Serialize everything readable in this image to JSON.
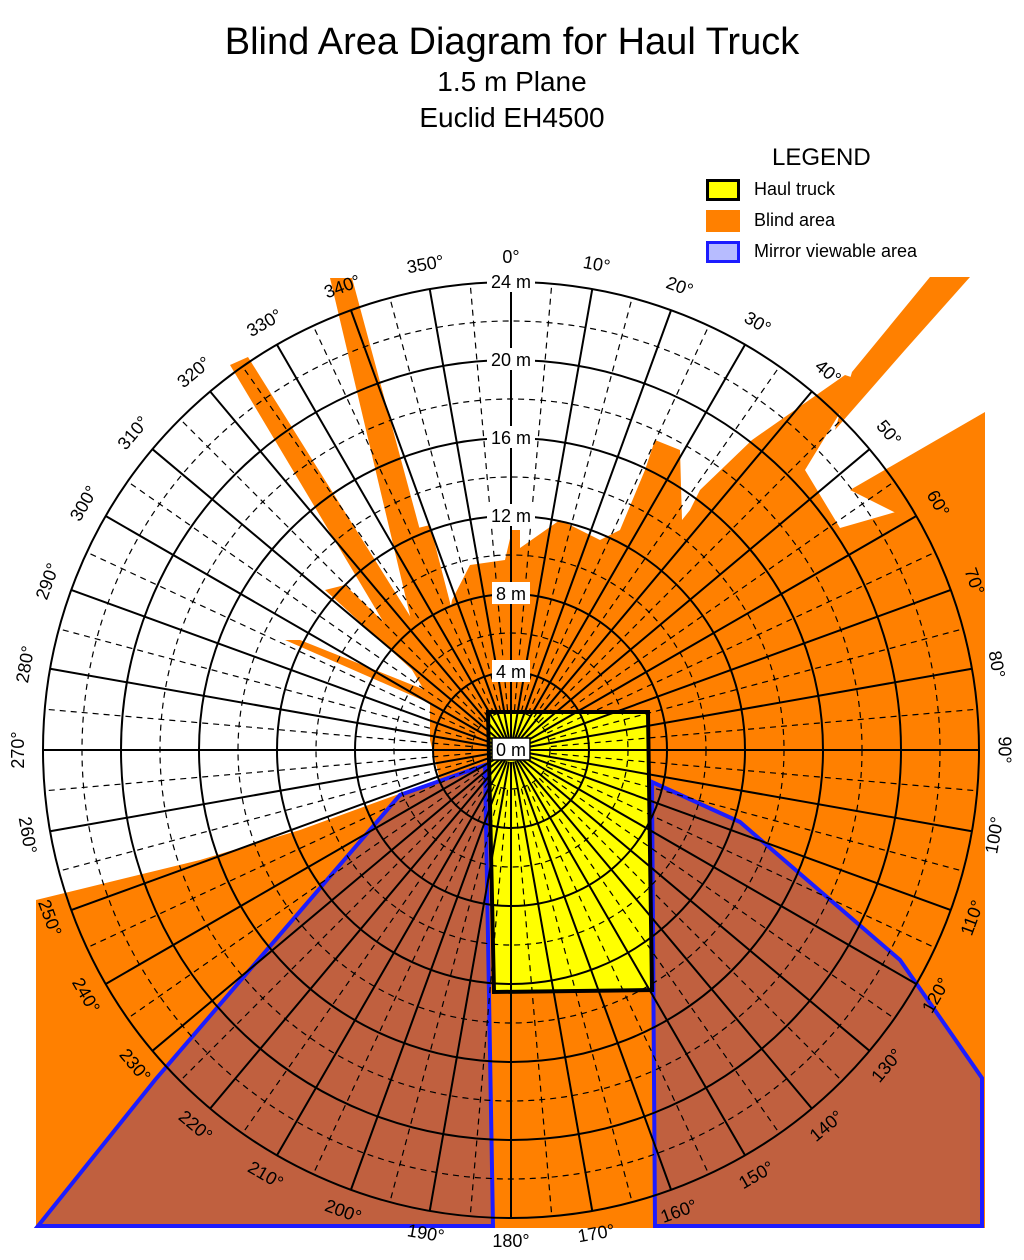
{
  "title": "Blind Area Diagram for Haul Truck",
  "subtitle": "1.5 m Plane",
  "model": "Euclid EH4500",
  "legend": {
    "title": "LEGEND",
    "items": [
      {
        "label": "Haul truck",
        "fill": "#ffff00",
        "border": "#000000"
      },
      {
        "label": "Blind area",
        "fill": "#ff8000",
        "border": "#ff8000"
      },
      {
        "label": "Mirror viewable area",
        "fill": "#b7bcff",
        "border": "#1c1cff"
      }
    ]
  },
  "colors": {
    "blind": "#ff8000",
    "mirror_fill": "#c0603f",
    "mirror_border": "#1c1cff",
    "truck": "#ffff00",
    "grid": "#000000"
  },
  "radial_labels": [
    "0 m",
    "4 m",
    "8 m",
    "12 m",
    "16 m",
    "20 m",
    "24 m"
  ],
  "angle_labels": [
    "0°",
    "10°",
    "20°",
    "30°",
    "40°",
    "50°",
    "60°",
    "70°",
    "80°",
    "90°",
    "100°",
    "110°",
    "120°",
    "130°",
    "140°",
    "150°",
    "160°",
    "170°",
    "180°",
    "190°",
    "200°",
    "210°",
    "220°",
    "230°",
    "240°",
    "250°",
    "260°",
    "270°",
    "280°",
    "290°",
    "300°",
    "310°",
    "320°",
    "330°",
    "340°",
    "350°"
  ]
}
